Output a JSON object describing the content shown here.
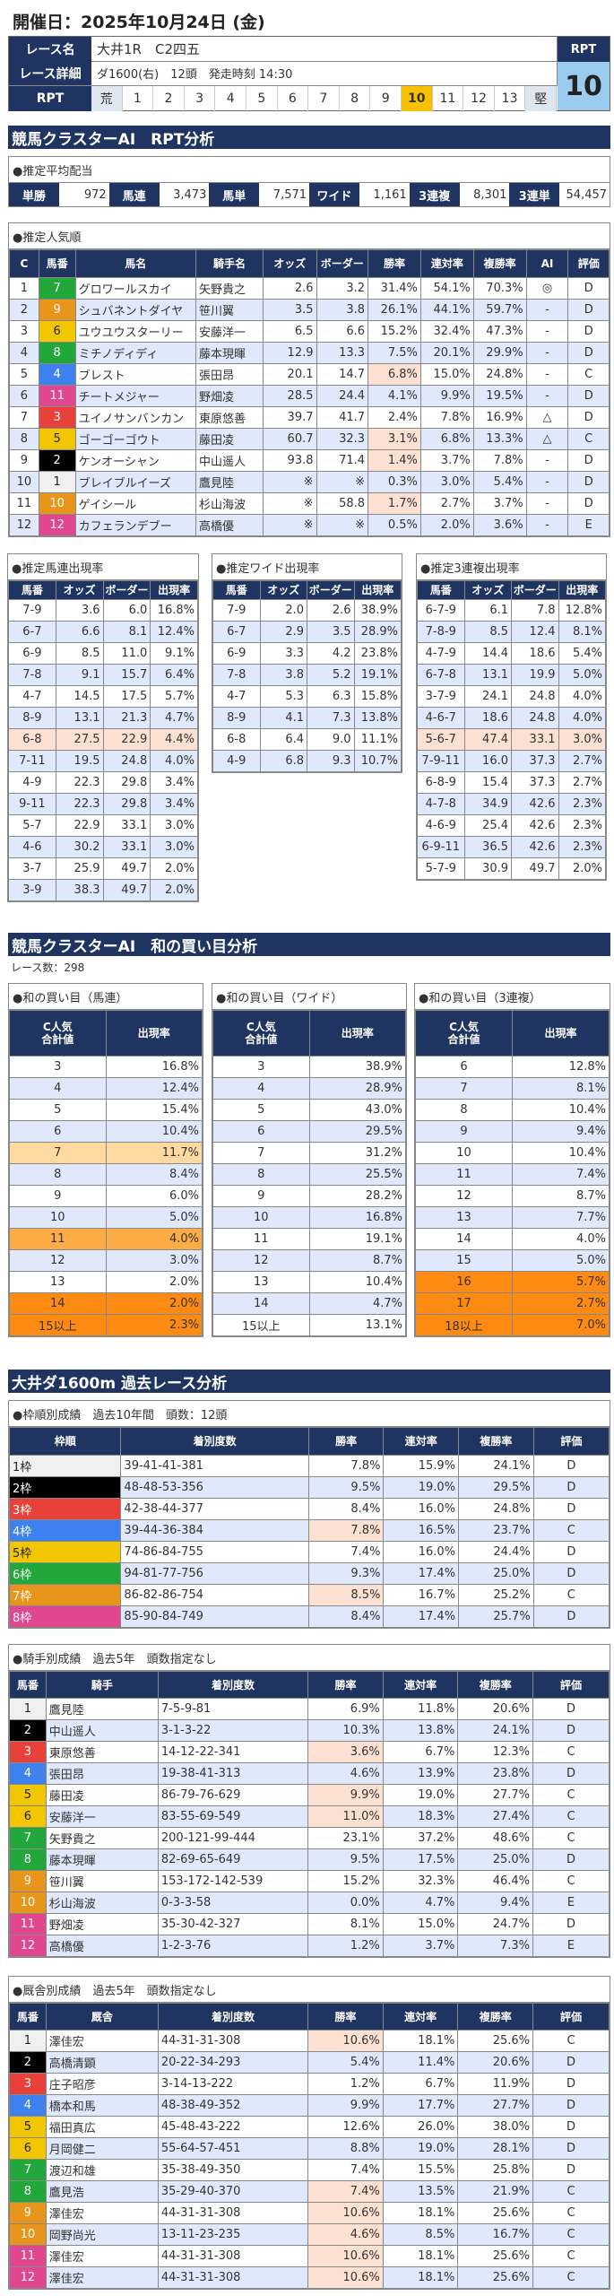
{
  "header": {
    "date_label": "開催日：2025年10月24日 (金)"
  },
  "race": {
    "name_label": "レース名",
    "name": "大井1R　C2四五",
    "detail_label": "レース詳細",
    "detail": "ダ1600(右)　12頭　発走時刻 14:30",
    "rpt_label": "RPT",
    "rpt_scale": [
      "荒",
      "1",
      "2",
      "3",
      "4",
      "5",
      "6",
      "7",
      "8",
      "9",
      "10",
      "11",
      "12",
      "13",
      "堅"
    ],
    "rpt_selected": "10",
    "rpt_box_label": "RPT",
    "rpt_value": "10"
  },
  "colors": {
    "navy": "#1f3461",
    "alt_row": "#dfe9fb",
    "highlight": "#fce0d2",
    "orange": "#fd8a12",
    "rpt_selected": "#f9c000",
    "rpt_box": "#9ccbf0",
    "waku": {
      "1": "#f0f0f0",
      "2": "#000000",
      "3": "#e8413a",
      "4": "#3d82ee",
      "5": "#f2c600",
      "6": "#22a83a",
      "7": "#e8951c",
      "8": "#e0478f"
    }
  },
  "section1": {
    "title": "競馬クラスターAI　RPT分析"
  },
  "payout": {
    "title": "●推定平均配当",
    "items": [
      {
        "label": "単勝",
        "value": "972"
      },
      {
        "label": "馬連",
        "value": "3,473"
      },
      {
        "label": "馬単",
        "value": "7,571"
      },
      {
        "label": "ワイド",
        "value": "1,161"
      },
      {
        "label": "3連複",
        "value": "8,301"
      },
      {
        "label": "3連単",
        "value": "54,457"
      }
    ]
  },
  "popularity": {
    "title": "●推定人気順",
    "columns": [
      "C",
      "馬番",
      "馬名",
      "騎手名",
      "オッズ",
      "ボーダー",
      "勝率",
      "連対率",
      "複勝率",
      "AI",
      "評価"
    ],
    "rows": [
      {
        "waku": 6,
        "cells": [
          "1",
          "7",
          "グロワールスカイ",
          "矢野貴之",
          "2.6",
          "3.2",
          "31.4%",
          "54.1%",
          "70.3%",
          "◎",
          "D"
        ]
      },
      {
        "waku": 7,
        "cells": [
          "2",
          "9",
          "シュバネントダイヤ",
          "笹川翼",
          "3.5",
          "3.8",
          "26.1%",
          "44.1%",
          "59.7%",
          "-",
          "D"
        ]
      },
      {
        "waku": 5,
        "cells": [
          "3",
          "6",
          "ユウユウスターリー",
          "安藤洋一",
          "6.5",
          "6.6",
          "15.2%",
          "32.4%",
          "47.3%",
          "-",
          "D"
        ]
      },
      {
        "waku": 6,
        "cells": [
          "4",
          "8",
          "ミチノディディ",
          "藤本現暉",
          "12.9",
          "13.3",
          "7.5%",
          "20.1%",
          "29.9%",
          "-",
          "D"
        ]
      },
      {
        "waku": 4,
        "hl": true,
        "cells": [
          "5",
          "4",
          "ブレスト",
          "張田昂",
          "20.1",
          "14.7",
          "6.8%",
          "15.0%",
          "24.8%",
          "-",
          "C"
        ]
      },
      {
        "waku": 8,
        "cells": [
          "6",
          "11",
          "チートメジャー",
          "野畑凌",
          "28.5",
          "24.4",
          "4.1%",
          "9.9%",
          "19.5%",
          "-",
          "D"
        ]
      },
      {
        "waku": 3,
        "cells": [
          "7",
          "3",
          "ユイノサンバンカン",
          "東原悠善",
          "39.7",
          "41.7",
          "2.4%",
          "7.8%",
          "16.9%",
          "△",
          "D"
        ]
      },
      {
        "waku": 5,
        "hl": true,
        "cells": [
          "8",
          "5",
          "ゴーゴーゴウト",
          "藤田凌",
          "60.7",
          "32.3",
          "3.1%",
          "6.8%",
          "13.3%",
          "△",
          "C"
        ]
      },
      {
        "waku": 2,
        "hl": true,
        "cells": [
          "9",
          "2",
          "ケンオーシャン",
          "中山遥人",
          "93.8",
          "71.4",
          "1.4%",
          "3.7%",
          "7.8%",
          "-",
          "D"
        ]
      },
      {
        "waku": 1,
        "cells": [
          "10",
          "1",
          "ブレイブルイーズ",
          "鷹見陸",
          "※",
          "※",
          "0.3%",
          "3.0%",
          "5.4%",
          "-",
          "D"
        ]
      },
      {
        "waku": 7,
        "hl": true,
        "cells": [
          "11",
          "10",
          "ゲイシール",
          "杉山海波",
          "※",
          "58.8",
          "1.7%",
          "2.7%",
          "3.7%",
          "-",
          "D"
        ]
      },
      {
        "waku": 8,
        "cells": [
          "12",
          "12",
          "カフェランデブー",
          "高橋優",
          "※",
          "※",
          "0.5%",
          "2.0%",
          "3.6%",
          "-",
          "E"
        ]
      }
    ]
  },
  "umaren": {
    "title": "●推定馬連出現率",
    "columns": [
      "馬番",
      "オッズ",
      "ボーダー",
      "出現率"
    ],
    "rows": [
      {
        "cells": [
          "7-9",
          "3.6",
          "6.0",
          "16.8%"
        ]
      },
      {
        "cells": [
          "6-7",
          "6.6",
          "8.1",
          "12.4%"
        ]
      },
      {
        "cells": [
          "6-9",
          "8.5",
          "11.0",
          "9.1%"
        ]
      },
      {
        "cells": [
          "7-8",
          "9.1",
          "15.7",
          "6.4%"
        ]
      },
      {
        "cells": [
          "4-7",
          "14.5",
          "17.5",
          "5.7%"
        ]
      },
      {
        "cells": [
          "8-9",
          "13.1",
          "21.3",
          "4.7%"
        ]
      },
      {
        "hl": "pe",
        "cells": [
          "6-8",
          "27.5",
          "22.9",
          "4.4%"
        ]
      },
      {
        "cells": [
          "7-11",
          "19.5",
          "24.8",
          "4.0%"
        ]
      },
      {
        "cells": [
          "4-9",
          "22.3",
          "29.8",
          "3.4%"
        ]
      },
      {
        "cells": [
          "9-11",
          "22.3",
          "29.8",
          "3.4%"
        ]
      },
      {
        "cells": [
          "5-7",
          "22.9",
          "33.1",
          "3.0%"
        ]
      },
      {
        "cells": [
          "4-6",
          "30.2",
          "33.1",
          "3.0%"
        ]
      },
      {
        "cells": [
          "3-7",
          "25.9",
          "49.7",
          "2.0%"
        ]
      },
      {
        "cells": [
          "3-9",
          "38.3",
          "49.7",
          "2.0%"
        ]
      }
    ]
  },
  "wide": {
    "title": "●推定ワイド出現率",
    "columns": [
      "馬番",
      "オッズ",
      "ボーダー",
      "出現率"
    ],
    "rows": [
      {
        "cells": [
          "7-9",
          "2.0",
          "2.6",
          "38.9%"
        ]
      },
      {
        "cells": [
          "6-7",
          "2.9",
          "3.5",
          "28.9%"
        ]
      },
      {
        "cells": [
          "6-9",
          "3.3",
          "4.2",
          "23.8%"
        ]
      },
      {
        "cells": [
          "7-8",
          "3.8",
          "5.2",
          "19.1%"
        ]
      },
      {
        "cells": [
          "4-7",
          "5.3",
          "6.3",
          "15.8%"
        ]
      },
      {
        "cells": [
          "8-9",
          "4.1",
          "7.3",
          "13.8%"
        ]
      },
      {
        "cells": [
          "6-8",
          "6.4",
          "9.0",
          "11.1%"
        ]
      },
      {
        "cells": [
          "4-9",
          "6.8",
          "9.3",
          "10.7%"
        ]
      }
    ]
  },
  "sanrenpuku": {
    "title": "●推定3連複出現率",
    "columns": [
      "馬番",
      "オッズ",
      "ボーダー",
      "出現率"
    ],
    "rows": [
      {
        "cells": [
          "6-7-9",
          "6.1",
          "7.8",
          "12.8%"
        ]
      },
      {
        "cells": [
          "7-8-9",
          "8.5",
          "12.4",
          "8.1%"
        ]
      },
      {
        "cells": [
          "4-7-9",
          "14.4",
          "18.6",
          "5.4%"
        ]
      },
      {
        "cells": [
          "6-7-8",
          "13.1",
          "19.9",
          "5.0%"
        ]
      },
      {
        "cells": [
          "3-7-9",
          "24.1",
          "24.8",
          "4.0%"
        ]
      },
      {
        "cells": [
          "4-6-7",
          "18.6",
          "24.8",
          "4.0%"
        ]
      },
      {
        "hl": "pe",
        "cells": [
          "5-6-7",
          "47.4",
          "33.1",
          "3.0%"
        ]
      },
      {
        "cells": [
          "7-9-11",
          "16.0",
          "37.3",
          "2.7%"
        ]
      },
      {
        "cells": [
          "6-8-9",
          "15.4",
          "37.3",
          "2.7%"
        ]
      },
      {
        "cells": [
          "4-7-8",
          "34.9",
          "42.6",
          "2.3%"
        ]
      },
      {
        "cells": [
          "4-6-9",
          "25.4",
          "42.6",
          "2.3%"
        ]
      },
      {
        "cells": [
          "6-9-11",
          "36.5",
          "42.6",
          "2.3%"
        ]
      },
      {
        "cells": [
          "5-7-9",
          "30.9",
          "49.7",
          "2.0%"
        ]
      }
    ]
  },
  "section2": {
    "title": "競馬クラスターAI　和の買い目分析",
    "race_count": "レース数：298"
  },
  "sum_umaren": {
    "title": "●和の買い目（馬連）",
    "columns": [
      "C人気\n合計値",
      "出現率"
    ],
    "rows": [
      {
        "cells": [
          "3",
          "16.8%"
        ]
      },
      {
        "cells": [
          "4",
          "12.4%"
        ]
      },
      {
        "cells": [
          "5",
          "15.4%"
        ]
      },
      {
        "cells": [
          "6",
          "10.4%"
        ]
      },
      {
        "hl": "lo",
        "cells": [
          "7",
          "11.7%"
        ]
      },
      {
        "cells": [
          "8",
          "8.4%"
        ]
      },
      {
        "cells": [
          "9",
          "6.0%"
        ]
      },
      {
        "cells": [
          "10",
          "5.0%"
        ]
      },
      {
        "hl": "mo",
        "cells": [
          "11",
          "4.0%"
        ]
      },
      {
        "cells": [
          "12",
          "3.0%"
        ]
      },
      {
        "cells": [
          "13",
          "2.0%"
        ]
      },
      {
        "hl": "or",
        "cells": [
          "14",
          "2.0%"
        ]
      },
      {
        "hl": "or",
        "cells": [
          "15以上",
          "2.3%"
        ]
      }
    ]
  },
  "sum_wide": {
    "title": "●和の買い目（ワイド）",
    "columns": [
      "C人気\n合計値",
      "出現率"
    ],
    "rows": [
      {
        "cells": [
          "3",
          "38.9%"
        ]
      },
      {
        "cells": [
          "4",
          "28.9%"
        ]
      },
      {
        "cells": [
          "5",
          "43.0%"
        ]
      },
      {
        "cells": [
          "6",
          "29.5%"
        ]
      },
      {
        "cells": [
          "7",
          "31.2%"
        ]
      },
      {
        "cells": [
          "8",
          "25.5%"
        ]
      },
      {
        "cells": [
          "9",
          "28.2%"
        ]
      },
      {
        "cells": [
          "10",
          "16.8%"
        ]
      },
      {
        "cells": [
          "11",
          "19.1%"
        ]
      },
      {
        "cells": [
          "12",
          "8.7%"
        ]
      },
      {
        "cells": [
          "13",
          "10.4%"
        ]
      },
      {
        "cells": [
          "14",
          "4.7%"
        ]
      },
      {
        "cells": [
          "15以上",
          "13.1%"
        ]
      }
    ]
  },
  "sum_sanrenpuku": {
    "title": "●和の買い目（3連複）",
    "columns": [
      "C人気\n合計値",
      "出現率"
    ],
    "rows": [
      {
        "cells": [
          "6",
          "12.8%"
        ]
      },
      {
        "cells": [
          "7",
          "8.1%"
        ]
      },
      {
        "cells": [
          "8",
          "10.4%"
        ]
      },
      {
        "cells": [
          "9",
          "9.4%"
        ]
      },
      {
        "cells": [
          "10",
          "10.4%"
        ]
      },
      {
        "cells": [
          "11",
          "7.4%"
        ]
      },
      {
        "cells": [
          "12",
          "8.7%"
        ]
      },
      {
        "cells": [
          "13",
          "7.7%"
        ]
      },
      {
        "cells": [
          "14",
          "4.0%"
        ]
      },
      {
        "cells": [
          "15",
          "5.0%"
        ]
      },
      {
        "hl": "or",
        "cells": [
          "16",
          "5.7%"
        ]
      },
      {
        "hl": "or",
        "cells": [
          "17",
          "2.7%"
        ]
      },
      {
        "hl": "or",
        "cells": [
          "18以上",
          "7.0%"
        ]
      }
    ]
  },
  "section3": {
    "title": "大井ダ1600m 過去レース分析"
  },
  "waku_stats": {
    "title": "●枠順別成績　過去10年間　頭数：12頭",
    "columns": [
      "枠順",
      "着別度数",
      "勝率",
      "連対率",
      "複勝率",
      "評価"
    ],
    "rows": [
      {
        "waku": 1,
        "cells": [
          "1枠",
          "39-41-41-381",
          "7.8%",
          "15.9%",
          "24.1%",
          "D"
        ]
      },
      {
        "waku": 2,
        "cells": [
          "2枠",
          "48-48-53-356",
          "9.5%",
          "19.0%",
          "29.5%",
          "D"
        ]
      },
      {
        "waku": 3,
        "cells": [
          "3枠",
          "42-38-44-377",
          "8.4%",
          "16.0%",
          "24.8%",
          "D"
        ]
      },
      {
        "waku": 4,
        "hl": true,
        "cells": [
          "4枠",
          "39-44-36-384",
          "7.8%",
          "16.5%",
          "23.7%",
          "C"
        ]
      },
      {
        "waku": 5,
        "cells": [
          "5枠",
          "74-86-84-755",
          "7.4%",
          "16.0%",
          "24.4%",
          "D"
        ]
      },
      {
        "waku": 6,
        "cells": [
          "6枠",
          "94-81-77-756",
          "9.3%",
          "17.4%",
          "25.0%",
          "D"
        ]
      },
      {
        "waku": 7,
        "hl": true,
        "cells": [
          "7枠",
          "86-82-86-754",
          "8.5%",
          "16.7%",
          "25.2%",
          "C"
        ]
      },
      {
        "waku": 8,
        "cells": [
          "8枠",
          "85-90-84-749",
          "8.4%",
          "17.4%",
          "25.7%",
          "D"
        ]
      }
    ]
  },
  "jockey_stats": {
    "title": "●騎手別成績　過去5年　頭数指定なし",
    "columns": [
      "馬番",
      "騎手",
      "着別度数",
      "勝率",
      "連対率",
      "複勝率",
      "評価"
    ],
    "rows": [
      {
        "waku": 1,
        "cells": [
          "1",
          "鷹見陸",
          "7-5-9-81",
          "6.9%",
          "11.8%",
          "20.6%",
          "D"
        ]
      },
      {
        "waku": 2,
        "cells": [
          "2",
          "中山遥人",
          "3-1-3-22",
          "10.3%",
          "13.8%",
          "24.1%",
          "D"
        ]
      },
      {
        "waku": 3,
        "hl": true,
        "cells": [
          "3",
          "東原悠善",
          "14-12-22-341",
          "3.6%",
          "6.7%",
          "12.3%",
          "C"
        ]
      },
      {
        "waku": 4,
        "cells": [
          "4",
          "張田昂",
          "19-38-41-313",
          "4.6%",
          "13.9%",
          "23.8%",
          "D"
        ]
      },
      {
        "waku": 5,
        "hl": true,
        "cells": [
          "5",
          "藤田凌",
          "86-79-76-629",
          "9.9%",
          "19.0%",
          "27.7%",
          "C"
        ]
      },
      {
        "waku": 5,
        "hl": true,
        "cells": [
          "6",
          "安藤洋一",
          "83-55-69-549",
          "11.0%",
          "18.3%",
          "27.4%",
          "C"
        ]
      },
      {
        "waku": 6,
        "cells": [
          "7",
          "矢野貴之",
          "200-121-99-444",
          "23.1%",
          "37.2%",
          "48.6%",
          "C"
        ]
      },
      {
        "waku": 6,
        "cells": [
          "8",
          "藤本現暉",
          "82-69-65-649",
          "9.5%",
          "17.5%",
          "25.0%",
          "D"
        ]
      },
      {
        "waku": 7,
        "cells": [
          "9",
          "笹川翼",
          "153-172-142-539",
          "15.2%",
          "32.3%",
          "46.4%",
          "C"
        ]
      },
      {
        "waku": 7,
        "cells": [
          "10",
          "杉山海波",
          "0-3-3-58",
          "0.0%",
          "4.7%",
          "9.4%",
          "E"
        ]
      },
      {
        "waku": 8,
        "cells": [
          "11",
          "野畑凌",
          "35-30-42-327",
          "8.1%",
          "15.0%",
          "24.7%",
          "D"
        ]
      },
      {
        "waku": 8,
        "cells": [
          "12",
          "高橋優",
          "1-2-3-76",
          "1.2%",
          "3.7%",
          "7.3%",
          "E"
        ]
      }
    ]
  },
  "stable_stats": {
    "title": "●厩舎別成績　過去5年　頭数指定なし",
    "columns": [
      "馬番",
      "厩舎",
      "着別度数",
      "勝率",
      "連対率",
      "複勝率",
      "評価"
    ],
    "rows": [
      {
        "waku": 1,
        "hl": true,
        "cells": [
          "1",
          "澤佳宏",
          "44-31-31-308",
          "10.6%",
          "18.1%",
          "25.6%",
          "C"
        ]
      },
      {
        "waku": 2,
        "cells": [
          "2",
          "高橋清顕",
          "20-22-34-293",
          "5.4%",
          "11.4%",
          "20.6%",
          "D"
        ]
      },
      {
        "waku": 3,
        "cells": [
          "3",
          "庄子昭彦",
          "3-14-13-222",
          "1.2%",
          "6.7%",
          "11.9%",
          "D"
        ]
      },
      {
        "waku": 4,
        "cells": [
          "4",
          "橋本和馬",
          "48-38-49-352",
          "9.9%",
          "17.7%",
          "27.7%",
          "D"
        ]
      },
      {
        "waku": 5,
        "cells": [
          "5",
          "福田真広",
          "45-48-43-222",
          "12.6%",
          "26.0%",
          "38.0%",
          "D"
        ]
      },
      {
        "waku": 5,
        "cells": [
          "6",
          "月岡健二",
          "55-64-57-451",
          "8.8%",
          "19.0%",
          "28.1%",
          "D"
        ]
      },
      {
        "waku": 6,
        "cells": [
          "7",
          "渡辺和雄",
          "35-38-49-350",
          "7.4%",
          "15.5%",
          "25.8%",
          "D"
        ]
      },
      {
        "waku": 6,
        "hl": true,
        "cells": [
          "8",
          "鷹見浩",
          "35-29-40-370",
          "7.4%",
          "13.5%",
          "21.9%",
          "C"
        ]
      },
      {
        "waku": 7,
        "hl": true,
        "cells": [
          "9",
          "澤佳宏",
          "44-31-31-308",
          "10.6%",
          "18.1%",
          "25.6%",
          "C"
        ]
      },
      {
        "waku": 7,
        "hl": true,
        "cells": [
          "10",
          "岡野尚光",
          "13-11-23-235",
          "4.6%",
          "8.5%",
          "16.7%",
          "C"
        ]
      },
      {
        "waku": 8,
        "hl": true,
        "cells": [
          "11",
          "澤佳宏",
          "44-31-31-308",
          "10.6%",
          "18.1%",
          "25.6%",
          "C"
        ]
      },
      {
        "waku": 8,
        "hl": true,
        "cells": [
          "12",
          "澤佳宏",
          "44-31-31-308",
          "10.6%",
          "18.1%",
          "25.6%",
          "C"
        ]
      }
    ]
  }
}
